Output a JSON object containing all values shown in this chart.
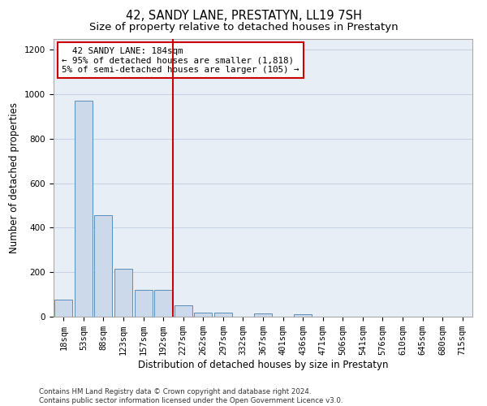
{
  "title": "42, SANDY LANE, PRESTATYN, LL19 7SH",
  "subtitle": "Size of property relative to detached houses in Prestatyn",
  "xlabel": "Distribution of detached houses by size in Prestatyn",
  "ylabel": "Number of detached properties",
  "bar_labels": [
    "18sqm",
    "53sqm",
    "88sqm",
    "123sqm",
    "157sqm",
    "192sqm",
    "227sqm",
    "262sqm",
    "297sqm",
    "332sqm",
    "367sqm",
    "401sqm",
    "436sqm",
    "471sqm",
    "506sqm",
    "541sqm",
    "576sqm",
    "610sqm",
    "645sqm",
    "680sqm",
    "715sqm"
  ],
  "bar_values": [
    75,
    970,
    455,
    215,
    120,
    120,
    50,
    20,
    20,
    0,
    15,
    0,
    10,
    0,
    0,
    0,
    0,
    0,
    0,
    0,
    0
  ],
  "bar_color": "#ccd9ea",
  "bar_edge_color": "#5b8db8",
  "grid_color": "#c8d4e3",
  "background_color": "#e8eef5",
  "vline_x": 5.5,
  "vline_color": "#cc0000",
  "annotation_text": "  42 SANDY LANE: 184sqm\n← 95% of detached houses are smaller (1,818)\n5% of semi-detached houses are larger (105) →",
  "annotation_box_color": "#ffffff",
  "annotation_box_edge": "#cc0000",
  "ylim": [
    0,
    1250
  ],
  "yticks": [
    0,
    200,
    400,
    600,
    800,
    1000,
    1200
  ],
  "footnote": "Contains HM Land Registry data © Crown copyright and database right 2024.\nContains public sector information licensed under the Open Government Licence v3.0.",
  "title_fontsize": 10.5,
  "subtitle_fontsize": 9.5,
  "axis_label_fontsize": 8.5,
  "tick_fontsize": 7.5
}
